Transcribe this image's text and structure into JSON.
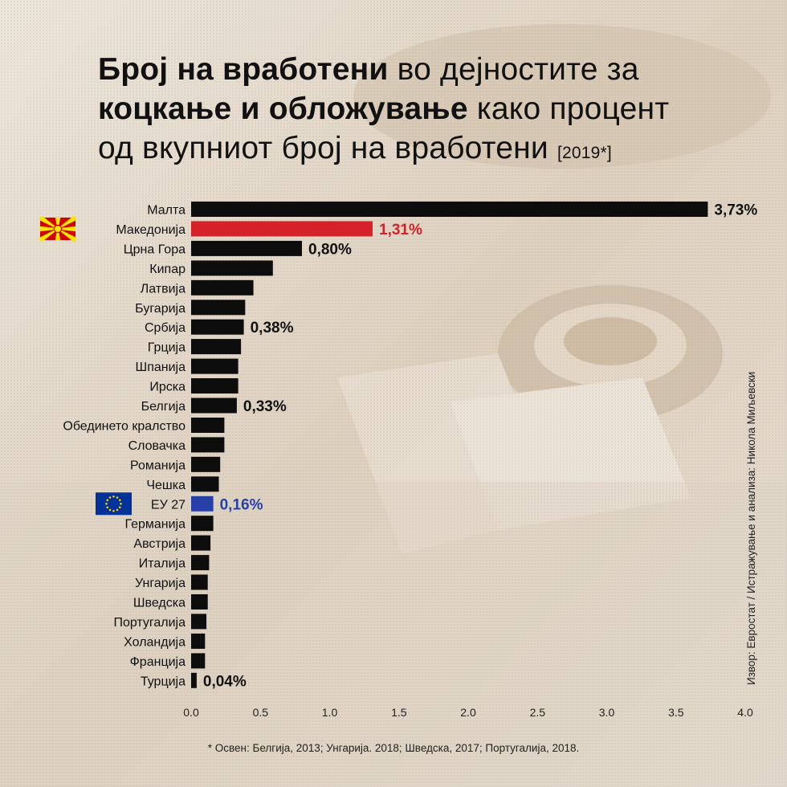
{
  "title": {
    "part1_bold": "Број на вработени",
    "part2": " во дејностите за",
    "part3_bold": "коцкање и обложување",
    "part4": " како процент",
    "part5": "од вкупниот број на вработени",
    "year": "[2019*]"
  },
  "source": "Извор: Евростат / Истражување и анализа: Никола Миљевски",
  "footnote": "* Освен: Белгија, 2013; Унгарија. 2018; Шведска, 2017; Португалија, 2018.",
  "colors": {
    "default_bar": "#0d0d0d",
    "highlight_mk": "#d6212b",
    "highlight_eu": "#2740a8",
    "flag_mk_red": "#d20000",
    "flag_mk_yellow": "#ffe600",
    "flag_eu_blue": "#003399",
    "flag_eu_star": "#ffcc00"
  },
  "chart_data": {
    "type": "bar",
    "orientation": "horizontal",
    "xlim": [
      0,
      4
    ],
    "ticks": [
      "0.0",
      "0.5",
      "1.0",
      "1.5",
      "2.0",
      "2.5",
      "3.0",
      "3.5",
      "4.0"
    ],
    "tick_values": [
      0,
      0.5,
      1,
      1.5,
      2,
      2.5,
      3,
      3.5,
      4
    ],
    "grid": false,
    "legend": "none",
    "categories": [
      "Малта",
      "Македонија",
      "Црна Гора",
      "Кипар",
      "Латвија",
      "Бугарија",
      "Србија",
      "Грција",
      "Шпанија",
      "Ирска",
      "Белгија",
      "Обединето кралство",
      "Словачка",
      "Романија",
      "Чешка",
      "ЕУ 27",
      "Германија",
      "Австрија",
      "Италија",
      "Унгарија",
      "Шведска",
      "Португалија",
      "Холандија",
      "Франција",
      "Турција"
    ],
    "values": [
      3.73,
      1.31,
      0.8,
      0.59,
      0.45,
      0.39,
      0.38,
      0.36,
      0.34,
      0.34,
      0.33,
      0.24,
      0.24,
      0.21,
      0.2,
      0.16,
      0.16,
      0.14,
      0.13,
      0.12,
      0.12,
      0.11,
      0.1,
      0.1,
      0.04
    ],
    "value_labels": [
      "3,73%",
      "1,31%",
      "0,80%",
      "",
      "",
      "",
      "0,38%",
      "",
      "",
      "",
      "0,33%",
      "",
      "",
      "",
      "",
      "0,16%",
      "",
      "",
      "",
      "",
      "",
      "",
      "",
      "",
      "0,04%"
    ],
    "highlights": [
      "none",
      "mk",
      "none",
      "none",
      "none",
      "none",
      "none",
      "none",
      "none",
      "none",
      "none",
      "none",
      "none",
      "none",
      "none",
      "eu",
      "none",
      "none",
      "none",
      "none",
      "none",
      "none",
      "none",
      "none",
      "none"
    ]
  }
}
